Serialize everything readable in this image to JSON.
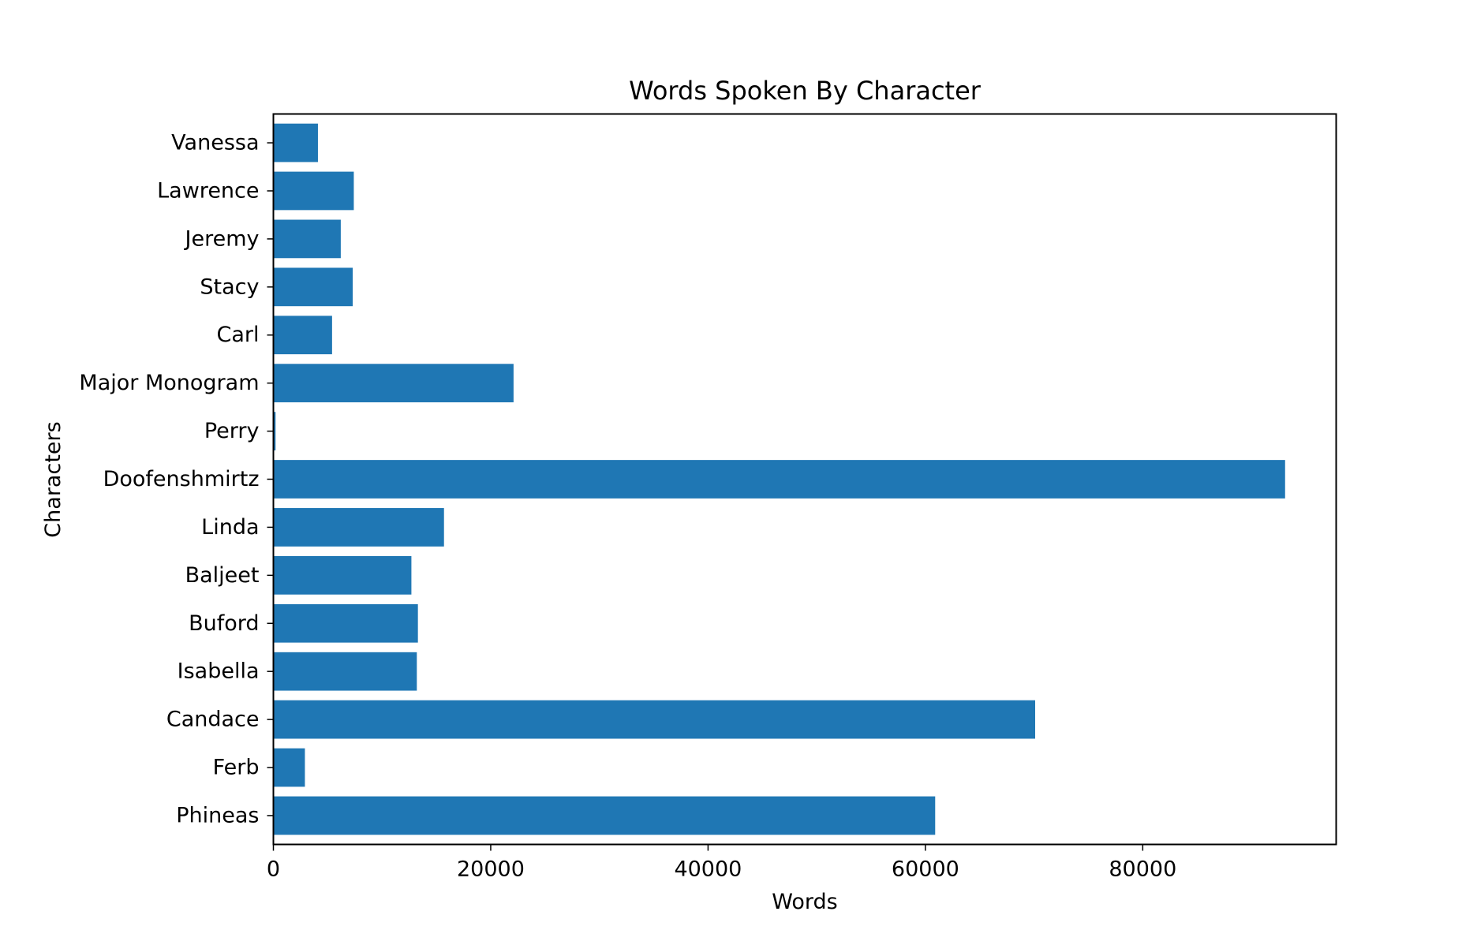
{
  "chart_data": {
    "type": "bar",
    "orientation": "horizontal",
    "title": "Words Spoken By Character",
    "xlabel": "Words",
    "ylabel": "Characters",
    "categories": [
      "Phineas",
      "Ferb",
      "Candace",
      "Isabella",
      "Buford",
      "Baljeet",
      "Linda",
      "Doofenshmirtz",
      "Perry",
      "Major Monogram",
      "Carl",
      "Stacy",
      "Jeremy",
      "Lawrence",
      "Vanessa"
    ],
    "values": [
      60900,
      2900,
      70100,
      13200,
      13300,
      12700,
      15700,
      93100,
      200,
      22100,
      5400,
      7300,
      6200,
      7400,
      4100
    ],
    "xlim": [
      0,
      97800
    ],
    "xticks": [
      0,
      20000,
      40000,
      60000,
      80000
    ],
    "xtick_labels": [
      "0",
      "20000",
      "40000",
      "60000",
      "80000"
    ],
    "bar_color": "#1f77b4",
    "grid": false,
    "legend": "none"
  }
}
